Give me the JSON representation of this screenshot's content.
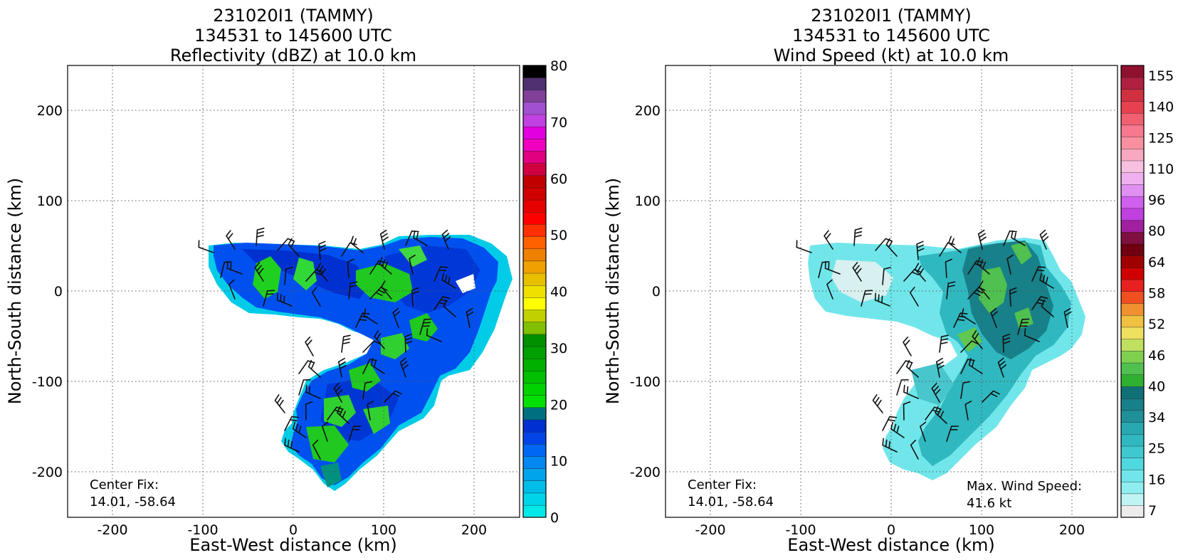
{
  "chart_data": [
    {
      "type": "heatmap",
      "title": [
        "231020I1 (TAMMY)",
        "134531 to 145600 UTC",
        "Reflectivity (dBZ) at 10.0 km"
      ],
      "xlabel": "East-West distance (km)",
      "ylabel": "North-South distance (km)",
      "xlim": [
        -250,
        250
      ],
      "ylim": [
        -250,
        250
      ],
      "xticks": [
        -200,
        -100,
        0,
        100,
        200
      ],
      "yticks": [
        -200,
        -100,
        0,
        100,
        200
      ],
      "grid": true,
      "annotation": [
        "Center Fix:",
        "14.01, -58.64"
      ],
      "colorbar": {
        "label_ticks": [
          0,
          10,
          20,
          30,
          40,
          50,
          60,
          70,
          80
        ],
        "range": [
          0,
          80
        ],
        "colors": [
          "#00e8e8",
          "#00d4e8",
          "#00bce8",
          "#00a4ec",
          "#0088f0",
          "#0066f4",
          "#0044e8",
          "#0030d0",
          "#007080",
          "#00e000",
          "#00d000",
          "#00c000",
          "#00b000",
          "#00a000",
          "#009000",
          "#80c000",
          "#c0d000",
          "#ffff00",
          "#f0e000",
          "#e8c000",
          "#f0a000",
          "#f08000",
          "#ff6000",
          "#ff3000",
          "#ff0000",
          "#e80000",
          "#d00000",
          "#c00000",
          "#d00040",
          "#e00080",
          "#f000c0",
          "#e000e0",
          "#c040e0",
          "#a050d0",
          "#804098",
          "#503070",
          "#000000"
        ]
      },
      "features": {
        "barbs_present": true,
        "dominant_colors": [
          "#0050f0",
          "#00c8e8",
          "#20d020"
        ]
      }
    },
    {
      "type": "heatmap",
      "title": [
        "231020I1 (TAMMY)",
        "134531 to 145600 UTC",
        "Wind Speed (kt) at 10.0 km"
      ],
      "xlabel": "East-West distance (km)",
      "ylabel": "North-South distance (km)",
      "xlim": [
        -250,
        250
      ],
      "ylim": [
        -250,
        250
      ],
      "xticks": [
        -200,
        -100,
        0,
        100,
        200
      ],
      "yticks": [
        -200,
        -100,
        0,
        100,
        200
      ],
      "grid": true,
      "annotation": [
        "Center Fix:",
        "14.01, -58.64"
      ],
      "annotation_right": [
        "Max. Wind Speed:",
        "41.6 kt"
      ],
      "colorbar": {
        "label_ticks": [
          7,
          16,
          25,
          34,
          40,
          46,
          52,
          58,
          64,
          80,
          96,
          110,
          125,
          140,
          155
        ],
        "colors": [
          "#ececec",
          "#c0f4f4",
          "#90eef0",
          "#70e6ea",
          "#50d8e0",
          "#40c8d0",
          "#30b8c0",
          "#28a8b0",
          "#209098",
          "#188088",
          "#107078",
          "#30b030",
          "#50c050",
          "#80d050",
          "#c0e060",
          "#f0e060",
          "#f0c040",
          "#f09030",
          "#f05020",
          "#e82020",
          "#d00000",
          "#a00000",
          "#700010",
          "#801040",
          "#a020a0",
          "#c040e0",
          "#d060f0",
          "#e090f0",
          "#f0b0f0",
          "#f8c0e0",
          "#f8a8c0",
          "#f890a0",
          "#f87890",
          "#f06070",
          "#e84050",
          "#d03040",
          "#b02040",
          "#901030"
        ]
      },
      "features": {
        "barbs_present": true,
        "dominant_colors": [
          "#70e6ea",
          "#30b8c0",
          "#188088",
          "#50c050"
        ]
      }
    }
  ]
}
